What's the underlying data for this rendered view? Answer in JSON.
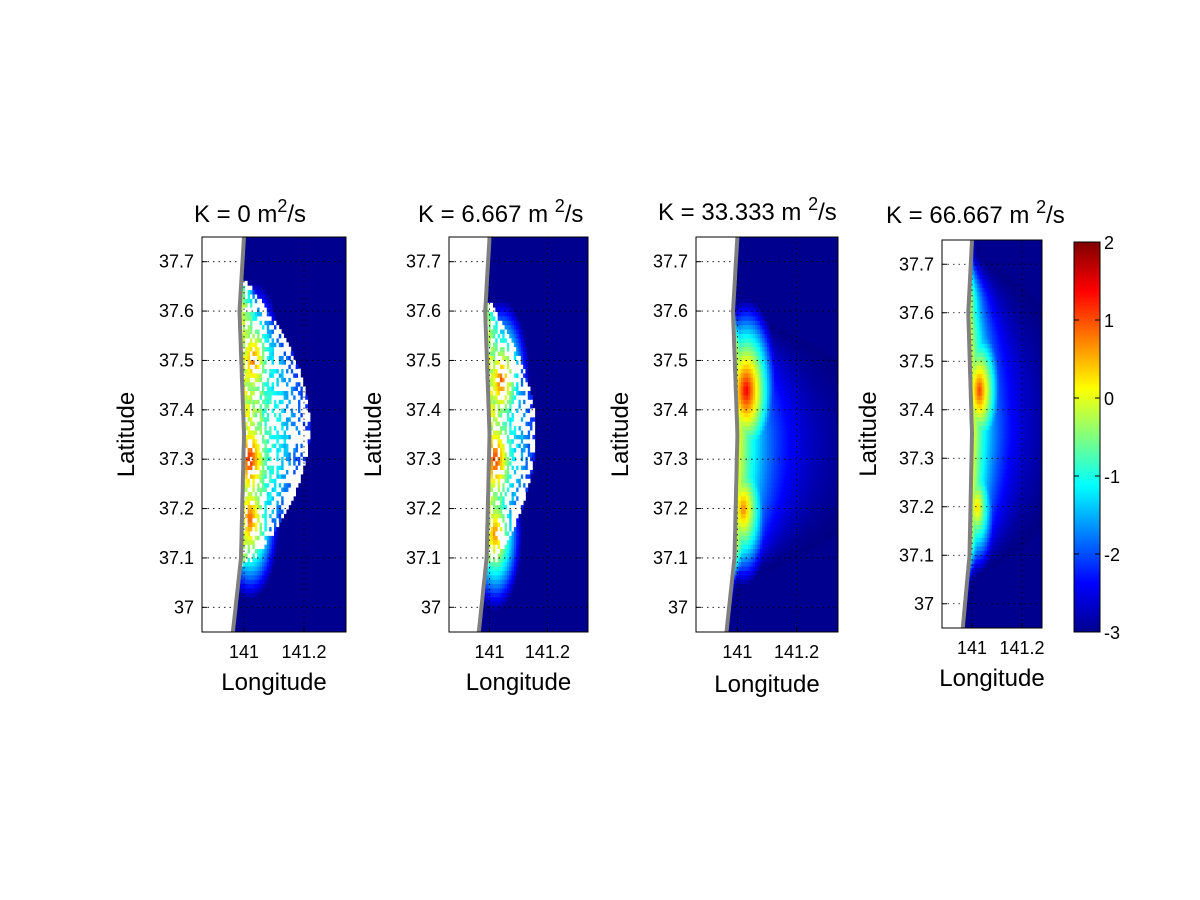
{
  "chart_data": [
    {
      "type": "heatmap",
      "title_text": "K = 0 m",
      "title_sup": "2",
      "title_unit": "/s",
      "xlabel": "Longitude",
      "ylabel": "Latitude",
      "xlim": [
        140.86,
        141.34
      ],
      "ylim": [
        36.95,
        37.75
      ],
      "xticks": [
        141,
        141.2
      ],
      "xtick_labels": [
        "141",
        "141.2"
      ],
      "yticks": [
        37,
        37.1,
        37.2,
        37.3,
        37.4,
        37.5,
        37.6,
        37.7
      ],
      "ytick_labels": [
        "37",
        "37.1",
        "37.2",
        "37.3",
        "37.4",
        "37.5",
        "37.6",
        "37.7"
      ],
      "grid": true,
      "style": "sparse",
      "plume": {
        "x_start": 141.0,
        "lat_min": 37.08,
        "lat_max": 37.66,
        "reach": 0.2
      },
      "hotspots": [
        {
          "lat": 37.3,
          "lon": 141.02,
          "value": 1.3
        },
        {
          "lat": 37.18,
          "lon": 141.02,
          "value": 1.0
        },
        {
          "lat": 37.5,
          "lon": 141.03,
          "value": 0.9
        }
      ]
    },
    {
      "type": "heatmap",
      "title_text": "K = 6.667 m ",
      "title_sup": "2",
      "title_unit": "/s",
      "xlabel": "Longitude",
      "ylabel": "Latitude",
      "xlim": [
        140.86,
        141.34
      ],
      "ylim": [
        36.95,
        37.75
      ],
      "xticks": [
        141,
        141.2
      ],
      "xtick_labels": [
        "141",
        "141.2"
      ],
      "yticks": [
        37,
        37.1,
        37.2,
        37.3,
        37.4,
        37.5,
        37.6,
        37.7
      ],
      "ytick_labels": [
        "37",
        "37.1",
        "37.2",
        "37.3",
        "37.4",
        "37.5",
        "37.6",
        "37.7"
      ],
      "grid": true,
      "style": "sparse",
      "plume": {
        "x_start": 141.0,
        "lat_min": 37.08,
        "lat_max": 37.62,
        "reach": 0.14
      },
      "hotspots": [
        {
          "lat": 37.3,
          "lon": 141.02,
          "value": 1.2
        },
        {
          "lat": 37.46,
          "lon": 141.04,
          "value": 1.0
        },
        {
          "lat": 37.15,
          "lon": 141.02,
          "value": 0.8
        }
      ]
    },
    {
      "type": "heatmap",
      "title_text": "K = 33.333 m ",
      "title_sup": "2",
      "title_unit": "/s",
      "xlabel": "Longitude",
      "ylabel": "Latitude",
      "xlim": [
        140.86,
        141.34
      ],
      "ylim": [
        36.95,
        37.75
      ],
      "xticks": [
        141,
        141.2
      ],
      "xtick_labels": [
        "141",
        "141.2"
      ],
      "yticks": [
        37,
        37.1,
        37.2,
        37.3,
        37.4,
        37.5,
        37.6,
        37.7
      ],
      "ytick_labels": [
        "37",
        "37.1",
        "37.2",
        "37.3",
        "37.4",
        "37.5",
        "37.6",
        "37.7"
      ],
      "grid": true,
      "style": "smooth",
      "plume": {
        "x_start": 141.0,
        "lat_min": 37.05,
        "lat_max": 37.6,
        "reach": 0.22
      },
      "hotspots": [
        {
          "lat": 37.44,
          "lon": 141.03,
          "value": 1.5
        },
        {
          "lat": 37.2,
          "lon": 141.02,
          "value": 0.8
        }
      ]
    },
    {
      "type": "heatmap",
      "title_text": "K = 66.667 m ",
      "title_sup": "2",
      "title_unit": "/s",
      "xlabel": "Longitude",
      "ylabel": "Latitude",
      "xlim": [
        140.88,
        141.28
      ],
      "ylim": [
        36.95,
        37.75
      ],
      "xticks": [
        141,
        141.2
      ],
      "xtick_labels": [
        "141",
        "141.2"
      ],
      "yticks": [
        37,
        37.1,
        37.2,
        37.3,
        37.4,
        37.5,
        37.6,
        37.7
      ],
      "ytick_labels": [
        "37",
        "37.1",
        "37.2",
        "37.3",
        "37.4",
        "37.5",
        "37.6",
        "37.7"
      ],
      "grid": true,
      "style": "smooth",
      "plume": {
        "x_start": 141.0,
        "lat_min": 37.05,
        "lat_max": 37.72,
        "reach": 0.2
      },
      "hotspots": [
        {
          "lat": 37.44,
          "lon": 141.03,
          "value": 1.1
        },
        {
          "lat": 37.2,
          "lon": 141.02,
          "value": 0.4
        }
      ]
    }
  ],
  "colorbar": {
    "colormap": "jet",
    "min": -3,
    "max": 2,
    "ticks": [
      2,
      1,
      0,
      -1,
      -2,
      -3
    ],
    "tick_labels": [
      "2",
      "1",
      "0",
      "-1",
      "-2",
      "-3"
    ]
  },
  "colors": {
    "land": "#ffffff",
    "coastline": "#808080",
    "background_value_color": "#00008f"
  }
}
